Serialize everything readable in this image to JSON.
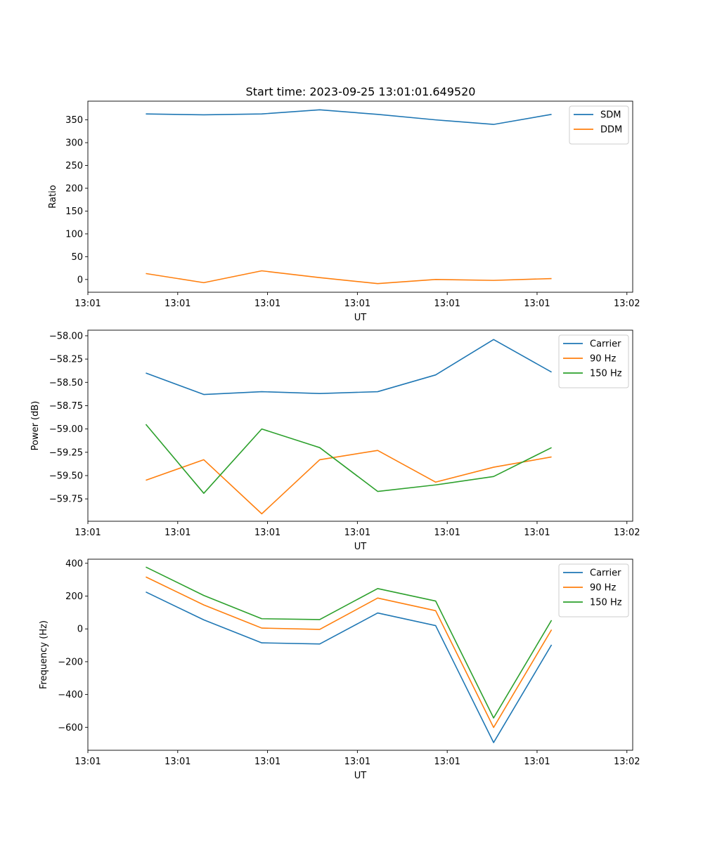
{
  "chart_data": [
    {
      "type": "line",
      "title": "Start time: 2023-09-25 13:01:01.649520",
      "xlabel": "UT",
      "ylabel": "Ratio",
      "x": [
        1,
        2,
        3,
        4,
        5,
        6,
        7,
        8
      ],
      "xlim": [
        0,
        9.4
      ],
      "x_ticks": [
        {
          "value": 0,
          "label": "13:01"
        },
        {
          "value": 1.55,
          "label": "13:01"
        },
        {
          "value": 3.1,
          "label": "13:01"
        },
        {
          "value": 4.65,
          "label": "13:01"
        },
        {
          "value": 6.2,
          "label": "13:01"
        },
        {
          "value": 7.75,
          "label": "13:01"
        },
        {
          "value": 9.3,
          "label": "13:02"
        }
      ],
      "ylim": [
        -28,
        391
      ],
      "y_ticks": [
        0,
        50,
        100,
        150,
        200,
        250,
        300,
        350
      ],
      "y_tick_labels": [
        "0",
        "50",
        "100",
        "150",
        "200",
        "250",
        "300",
        "350"
      ],
      "series": [
        {
          "name": "SDM",
          "color": "#1f77b4",
          "values": [
            363,
            361,
            363,
            372,
            362,
            350,
            340,
            362
          ]
        },
        {
          "name": "DDM",
          "color": "#ff7f0e",
          "values": [
            13,
            -7,
            19,
            4,
            -9,
            0,
            -2,
            2
          ]
        }
      ],
      "legend": "upper right"
    },
    {
      "type": "line",
      "title": "",
      "xlabel": "UT",
      "ylabel": "Power (dB)",
      "x": [
        1,
        2,
        3,
        4,
        5,
        6,
        7,
        8
      ],
      "xlim": [
        0,
        9.4
      ],
      "x_ticks": [
        {
          "value": 0,
          "label": "13:01"
        },
        {
          "value": 1.55,
          "label": "13:01"
        },
        {
          "value": 3.1,
          "label": "13:01"
        },
        {
          "value": 4.65,
          "label": "13:01"
        },
        {
          "value": 6.2,
          "label": "13:01"
        },
        {
          "value": 7.75,
          "label": "13:01"
        },
        {
          "value": 9.3,
          "label": "13:02"
        }
      ],
      "ylim": [
        -59.99,
        -57.94
      ],
      "y_ticks": [
        -59.75,
        -59.5,
        -59.25,
        -59.0,
        -58.75,
        -58.5,
        -58.25,
        -58.0
      ],
      "y_tick_labels": [
        "−59.75",
        "−59.50",
        "−59.25",
        "−59.00",
        "−58.75",
        "−58.50",
        "−58.25",
        "−58.00"
      ],
      "series": [
        {
          "name": "Carrier",
          "color": "#1f77b4",
          "values": [
            -58.4,
            -58.63,
            -58.6,
            -58.62,
            -58.6,
            -58.42,
            -58.04,
            -58.39
          ]
        },
        {
          "name": "90 Hz",
          "color": "#ff7f0e",
          "values": [
            -59.55,
            -59.33,
            -59.91,
            -59.33,
            -59.23,
            -59.57,
            -59.41,
            -59.3
          ]
        },
        {
          "name": "150 Hz",
          "color": "#2ca02c",
          "values": [
            -58.95,
            -59.69,
            -59.0,
            -59.2,
            -59.67,
            -59.6,
            -59.51,
            -59.2
          ]
        }
      ],
      "legend": "upper right"
    },
    {
      "type": "line",
      "title": "",
      "xlabel": "UT",
      "ylabel": "Frequency (Hz)",
      "x": [
        1,
        2,
        3,
        4,
        5,
        6,
        7,
        8
      ],
      "xlim": [
        0,
        9.4
      ],
      "x_ticks": [
        {
          "value": 0,
          "label": "13:01"
        },
        {
          "value": 1.55,
          "label": "13:01"
        },
        {
          "value": 3.1,
          "label": "13:01"
        },
        {
          "value": 4.65,
          "label": "13:01"
        },
        {
          "value": 6.2,
          "label": "13:01"
        },
        {
          "value": 7.75,
          "label": "13:01"
        },
        {
          "value": 9.3,
          "label": "13:02"
        }
      ],
      "ylim": [
        -740,
        425
      ],
      "y_ticks": [
        -600,
        -400,
        -200,
        0,
        200,
        400
      ],
      "y_tick_labels": [
        "−600",
        "−400",
        "−200",
        "0",
        "200",
        "400"
      ],
      "series": [
        {
          "name": "Carrier",
          "color": "#1f77b4",
          "values": [
            225,
            55,
            -85,
            -92,
            97,
            20,
            -693,
            -97
          ]
        },
        {
          "name": "90 Hz",
          "color": "#ff7f0e",
          "values": [
            317,
            146,
            5,
            -3,
            188,
            111,
            -601,
            -5
          ]
        },
        {
          "name": "150 Hz",
          "color": "#2ca02c",
          "values": [
            377,
            204,
            62,
            57,
            246,
            170,
            -543,
            53
          ]
        }
      ],
      "legend": "upper right"
    }
  ]
}
